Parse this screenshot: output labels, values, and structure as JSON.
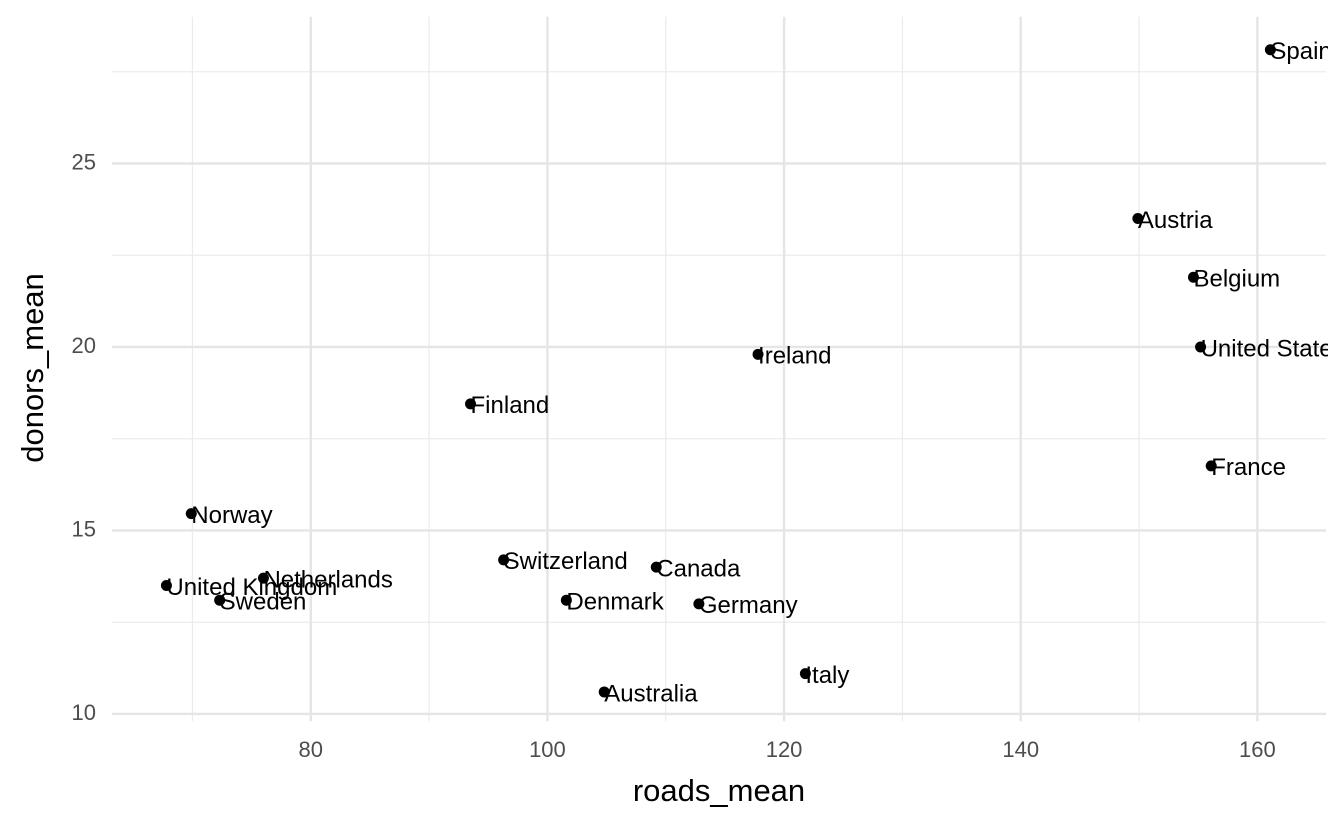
{
  "chart_data": {
    "type": "scatter",
    "x_label": "roads_mean",
    "y_label": "donors_mean",
    "labels": [
      "Spain",
      "Austria",
      "Belgium",
      "United States",
      "France",
      "Ireland",
      "Finland",
      "Norway",
      "United Kingdom",
      "Netherlands",
      "Sweden",
      "Switzerland",
      "Canada",
      "Denmark",
      "Germany",
      "Australia",
      "Italy"
    ],
    "x": [
      161.1,
      149.9,
      154.6,
      155.2,
      156.1,
      117.8,
      93.5,
      69.9,
      67.8,
      76.0,
      72.3,
      96.3,
      109.2,
      101.6,
      112.8,
      104.8,
      121.8
    ],
    "values": [
      28.1,
      23.5,
      21.9,
      20.0,
      16.76,
      19.8,
      18.45,
      15.46,
      13.5,
      13.7,
      13.1,
      14.2,
      14.0,
      13.1,
      13.0,
      10.6,
      11.1
    ],
    "color": "#000000",
    "xlim": [
      63.2,
      165.8
    ],
    "ylim": [
      9.8,
      29.0
    ],
    "xticks": [
      80,
      100,
      120,
      140,
      160
    ],
    "yticks": [
      10,
      15,
      20,
      25
    ],
    "grid": true,
    "minor_grid": true
  }
}
